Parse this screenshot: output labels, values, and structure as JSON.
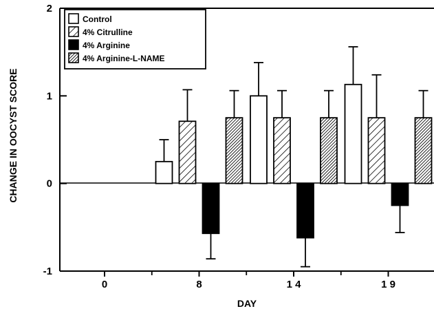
{
  "chart_data": {
    "type": "bar",
    "xlabel": "DAY",
    "ylabel": "CHANGE IN OOCYST SCORE",
    "categories": [
      "0",
      "8",
      "14",
      "19"
    ],
    "category_labels": [
      "0",
      "8",
      "1 4",
      "1 9"
    ],
    "ylim": [
      -1,
      2
    ],
    "yticks": [
      -1,
      0,
      1,
      2
    ],
    "grid": false,
    "legend_position": "top-left",
    "series": [
      {
        "name": "Control",
        "pattern": "open",
        "values": [
          null,
          0.25,
          1.0,
          1.13
        ],
        "errors": [
          null,
          0.25,
          0.38,
          0.43
        ]
      },
      {
        "name": "4% Citrulline",
        "pattern": "hatched",
        "values": [
          null,
          0.71,
          0.75,
          0.75
        ],
        "errors": [
          null,
          0.36,
          0.31,
          0.49
        ]
      },
      {
        "name": "4% Arginine",
        "pattern": "solid",
        "values": [
          null,
          -0.57,
          -0.62,
          -0.25
        ],
        "errors": [
          null,
          0.29,
          0.33,
          0.31
        ]
      },
      {
        "name": "4% Arginine-L-NAME",
        "pattern": "dense-hatched",
        "values": [
          null,
          0.75,
          0.75,
          0.75
        ],
        "errors": [
          null,
          0.31,
          0.31,
          0.31
        ]
      }
    ]
  }
}
